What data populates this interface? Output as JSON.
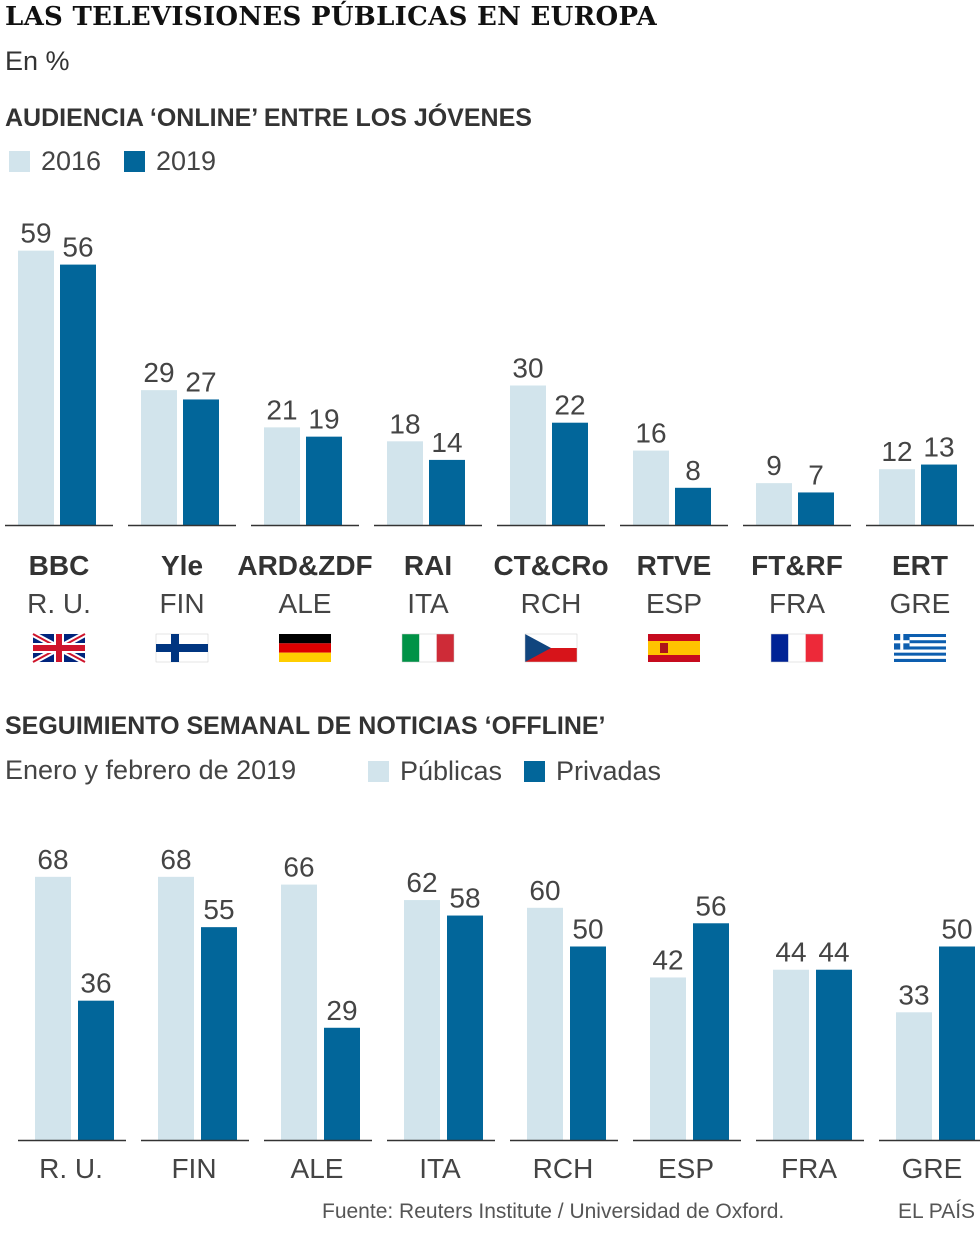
{
  "title": "LAS TELEVISIONES PÚBLICAS EN EUROPA",
  "subtitle": "En %",
  "colors": {
    "light": "#d2e4ec",
    "dark": "#02669a",
    "axis": "#333333"
  },
  "chart_data": [
    {
      "type": "bar",
      "title": "AUDIENCIA ‘ONLINE’ ENTRE LOS JÓVENES",
      "ylim": [
        0,
        60
      ],
      "legend": [
        "2016",
        "2019"
      ],
      "categories": [
        "BBC",
        "Yle",
        "ARD&ZDF",
        "RAI",
        "CT&CRo",
        "RTVE",
        "FT&RF",
        "ERT"
      ],
      "countries": [
        "R. U.",
        "FIN",
        "ALE",
        "ITA",
        "RCH",
        "ESP",
        "FRA",
        "GRE"
      ],
      "flags": [
        "uk-flag-icon",
        "finland-flag-icon",
        "germany-flag-icon",
        "italy-flag-icon",
        "czech-flag-icon",
        "spain-flag-icon",
        "france-flag-icon",
        "greece-flag-icon"
      ],
      "series": [
        {
          "name": "2016",
          "values": [
            59,
            29,
            21,
            18,
            30,
            16,
            9,
            12
          ]
        },
        {
          "name": "2019",
          "values": [
            56,
            27,
            19,
            14,
            22,
            8,
            7,
            13
          ]
        }
      ]
    },
    {
      "type": "bar",
      "title": "SEGUIMIENTO SEMANAL DE NOTICIAS ‘OFFLINE’",
      "subtitle": "Enero y febrero de 2019",
      "ylim": [
        0,
        70
      ],
      "legend": [
        "Públicas",
        "Privadas"
      ],
      "categories": [
        "R. U.",
        "FIN",
        "ALE",
        "ITA",
        "RCH",
        "ESP",
        "FRA",
        "GRE"
      ],
      "series": [
        {
          "name": "Públicas",
          "values": [
            68,
            68,
            66,
            62,
            60,
            42,
            44,
            33
          ]
        },
        {
          "name": "Privadas",
          "values": [
            36,
            55,
            29,
            58,
            50,
            56,
            44,
            50
          ]
        }
      ]
    }
  ],
  "footer": {
    "source": "Fuente: Reuters Institute / Universidad de Oxford.",
    "brand": "EL PAÍS"
  }
}
